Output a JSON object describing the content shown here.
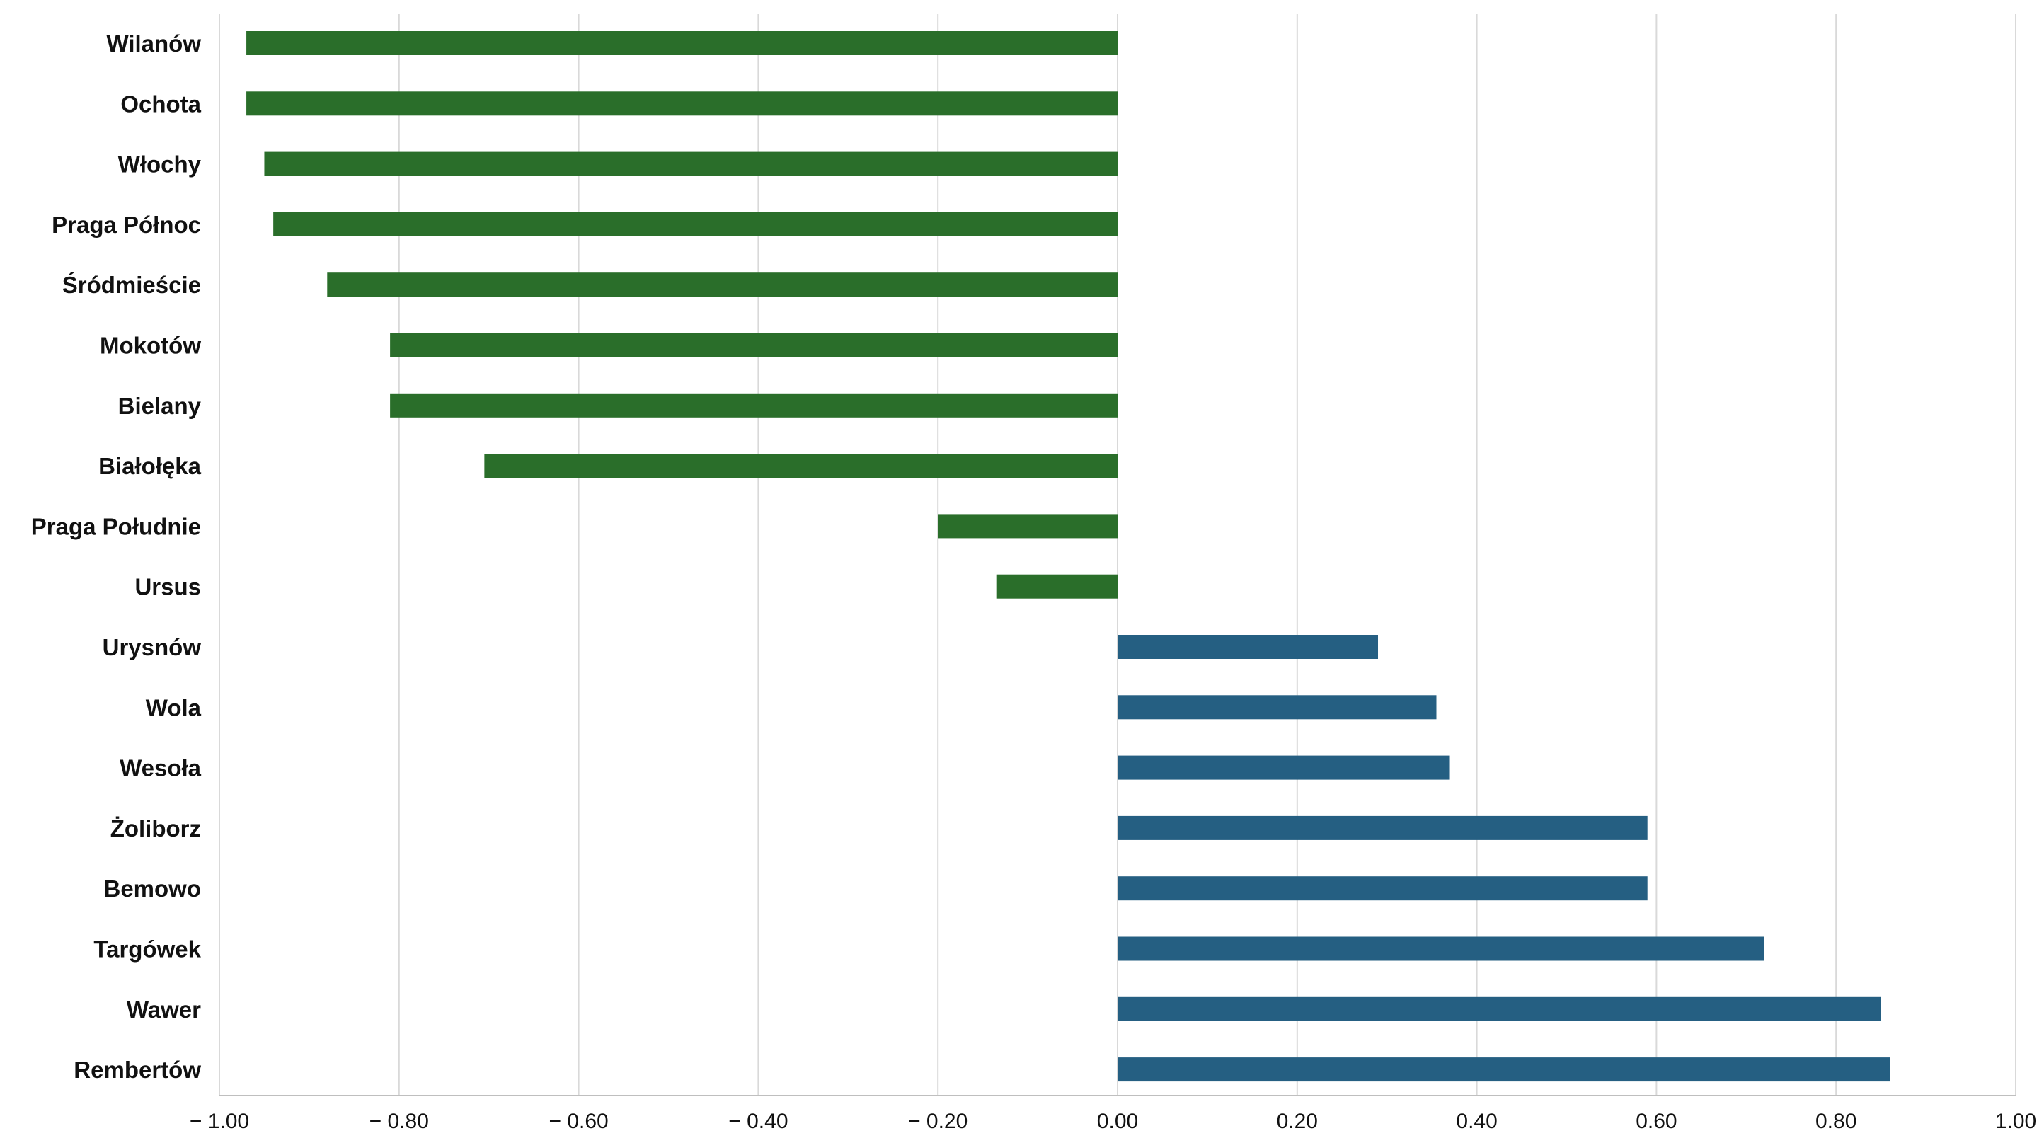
{
  "chart_data": {
    "type": "bar",
    "orientation": "horizontal",
    "title": "",
    "xlabel": "",
    "ylabel": "",
    "xlim": [
      -1.0,
      1.0
    ],
    "grid": true,
    "legend": "none",
    "x_ticks": [
      -1.0,
      -0.8,
      -0.6,
      -0.4,
      -0.2,
      0.0,
      0.2,
      0.4,
      0.6,
      0.8,
      1.0
    ],
    "x_tick_labels": [
      "− 1.00",
      "− 0.80",
      "− 0.60",
      "− 0.40",
      "− 0.20",
      "0.00",
      "0.20",
      "0.40",
      "0.60",
      "0.80",
      "1.00"
    ],
    "categories": [
      "Wilanów",
      "Ochota",
      "Włochy",
      "Praga Północ",
      "Śródmieście",
      "Mokotów",
      "Bielany",
      "Białołęka",
      "Praga Południe",
      "Ursus",
      "Urysnów",
      "Wola",
      "Wesoła",
      "Żoliborz",
      "Bemowo",
      "Targówek",
      "Wawer",
      "Rembertów"
    ],
    "values": [
      -0.97,
      -0.97,
      -0.95,
      -0.94,
      -0.88,
      -0.81,
      -0.81,
      -0.705,
      -0.2,
      -0.135,
      0.29,
      0.355,
      0.37,
      0.59,
      0.59,
      0.72,
      0.85,
      0.86
    ],
    "colors": {
      "negative": "#2a6e2a",
      "positive": "#255f82"
    }
  }
}
